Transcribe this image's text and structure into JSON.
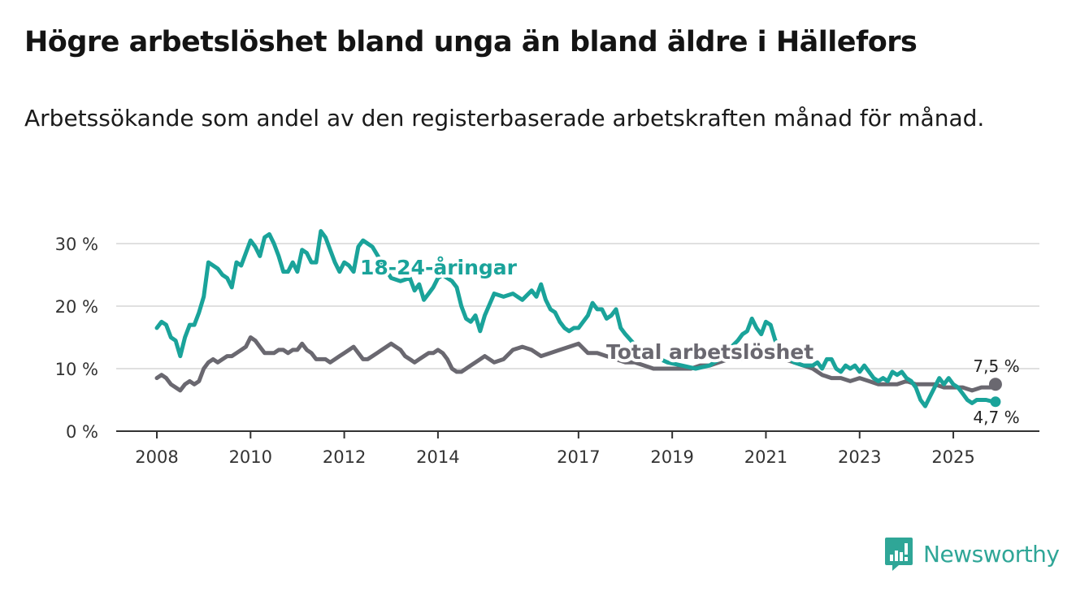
{
  "title": "Högre arbetslöshet bland unga än bland äldre i Hällefors",
  "subtitle": "Arbetssökande som andel av den registerbaserade arbetskraften månad för månad.",
  "brand": {
    "name": "Newsworthy",
    "color": "#2fa697"
  },
  "chart_data": {
    "type": "line",
    "title": "Högre arbetslöshet bland unga än bland äldre i Hällefors",
    "ylabel": "",
    "xlabel": "",
    "ylim": [
      0,
      30
    ],
    "xlim": [
      2007.6,
      2026.8
    ],
    "y_ticks": [
      {
        "value": 0,
        "label": "0 %"
      },
      {
        "value": 10,
        "label": "10 %"
      },
      {
        "value": 20,
        "label": "20 %"
      },
      {
        "value": 30,
        "label": "30 %"
      }
    ],
    "x_ticks": [
      {
        "value": 2008,
        "label": "2008"
      },
      {
        "value": 2010,
        "label": "2010"
      },
      {
        "value": 2012,
        "label": "2012"
      },
      {
        "value": 2014,
        "label": "2014"
      },
      {
        "value": 2017,
        "label": "2017"
      },
      {
        "value": 2019,
        "label": "2019"
      },
      {
        "value": 2021,
        "label": "2021"
      },
      {
        "value": 2023,
        "label": "2023"
      },
      {
        "value": 2025,
        "label": "2025"
      }
    ],
    "grid": true,
    "series": [
      {
        "name": "18-24-åringar",
        "color": "#1aa39a",
        "end_label": "4,7 %",
        "end_value": 4.7,
        "x": [
          2008.0,
          2008.1,
          2008.2,
          2008.3,
          2008.4,
          2008.5,
          2008.6,
          2008.7,
          2008.8,
          2008.9,
          2009.0,
          2009.1,
          2009.2,
          2009.3,
          2009.4,
          2009.5,
          2009.6,
          2009.7,
          2009.8,
          2009.9,
          2010.0,
          2010.1,
          2010.2,
          2010.3,
          2010.4,
          2010.5,
          2010.6,
          2010.7,
          2010.8,
          2010.9,
          2011.0,
          2011.1,
          2011.2,
          2011.3,
          2011.4,
          2011.5,
          2011.6,
          2011.7,
          2011.8,
          2011.9,
          2012.0,
          2012.1,
          2012.2,
          2012.3,
          2012.4,
          2012.5,
          2012.6,
          2012.8,
          2013.0,
          2013.2,
          2013.4,
          2013.5,
          2013.6,
          2013.7,
          2013.8,
          2013.9,
          2014.0,
          2014.1,
          2014.2,
          2014.3,
          2014.4,
          2014.5,
          2014.6,
          2014.7,
          2014.8,
          2014.9,
          2015.0,
          2015.2,
          2015.4,
          2015.6,
          2015.8,
          2016.0,
          2016.1,
          2016.2,
          2016.3,
          2016.4,
          2016.5,
          2016.6,
          2016.7,
          2016.8,
          2016.9,
          2017.0,
          2017.1,
          2017.2,
          2017.3,
          2017.4,
          2017.5,
          2017.6,
          2017.7,
          2017.8,
          2017.9,
          2018.0,
          2018.3,
          2018.6,
          2018.9,
          2019.2,
          2019.5,
          2019.8,
          2020.0,
          2020.2,
          2020.4,
          2020.5,
          2020.6,
          2020.7,
          2020.8,
          2020.9,
          2021.0,
          2021.1,
          2021.2,
          2021.4,
          2021.6,
          2021.8,
          2022.0,
          2022.1,
          2022.2,
          2022.3,
          2022.4,
          2022.5,
          2022.6,
          2022.7,
          2022.8,
          2022.9,
          2023.0,
          2023.1,
          2023.2,
          2023.3,
          2023.4,
          2023.5,
          2023.6,
          2023.7,
          2023.8,
          2023.9,
          2024.0,
          2024.1,
          2024.2,
          2024.3,
          2024.4,
          2024.5,
          2024.6,
          2024.7,
          2024.8,
          2024.9,
          2025.0,
          2025.1,
          2025.2,
          2025.3,
          2025.4,
          2025.5,
          2025.6,
          2025.7,
          2025.8,
          2025.9
        ],
        "values": [
          16.5,
          17.5,
          17.0,
          15.0,
          14.5,
          12.0,
          15.0,
          17.0,
          17.0,
          19.0,
          21.5,
          27.0,
          26.5,
          26.0,
          25.0,
          24.5,
          23.0,
          27.0,
          26.5,
          28.5,
          30.5,
          29.5,
          28.0,
          31.0,
          31.5,
          30.0,
          28.0,
          25.5,
          25.5,
          27.0,
          25.5,
          29.0,
          28.5,
          27.0,
          27.0,
          32.0,
          31.0,
          29.0,
          27.0,
          25.5,
          27.0,
          26.5,
          25.5,
          29.5,
          30.5,
          30.0,
          29.5,
          27.0,
          24.5,
          24.0,
          24.5,
          22.5,
          23.5,
          21.0,
          22.0,
          23.0,
          24.5,
          25.0,
          24.5,
          24.0,
          23.0,
          20.0,
          18.0,
          17.5,
          18.5,
          16.0,
          18.5,
          22.0,
          21.5,
          22.0,
          21.0,
          22.5,
          21.5,
          23.5,
          21.0,
          19.5,
          19.0,
          17.5,
          16.5,
          16.0,
          16.5,
          16.5,
          17.5,
          18.5,
          20.5,
          19.5,
          19.5,
          18.0,
          18.5,
          19.5,
          16.5,
          15.5,
          13.0,
          12.0,
          11.0,
          10.5,
          10.0,
          10.5,
          11.5,
          13.0,
          14.5,
          15.5,
          16.0,
          18.0,
          16.5,
          15.5,
          17.5,
          17.0,
          14.5,
          12.5,
          11.0,
          10.5,
          10.5,
          11.0,
          10.0,
          11.5,
          11.5,
          10.0,
          9.5,
          10.5,
          10.0,
          10.5,
          9.5,
          10.5,
          9.5,
          8.5,
          8.0,
          8.5,
          8.0,
          9.5,
          9.0,
          9.5,
          8.5,
          8.0,
          7.0,
          5.0,
          4.0,
          5.5,
          7.0,
          8.5,
          7.5,
          8.5,
          7.5,
          7.0,
          6.0,
          5.0,
          4.5,
          5.0,
          5.0,
          5.0,
          4.8,
          4.7
        ]
      },
      {
        "name": "Total arbetslöshet",
        "color": "#6a6870",
        "end_label": "7,5 %",
        "end_value": 7.5,
        "x": [
          2008.0,
          2008.1,
          2008.2,
          2008.3,
          2008.4,
          2008.5,
          2008.6,
          2008.7,
          2008.8,
          2008.9,
          2009.0,
          2009.1,
          2009.2,
          2009.3,
          2009.4,
          2009.5,
          2009.6,
          2009.7,
          2009.8,
          2009.9,
          2010.0,
          2010.1,
          2010.2,
          2010.3,
          2010.4,
          2010.5,
          2010.6,
          2010.7,
          2010.8,
          2010.9,
          2011.0,
          2011.1,
          2011.2,
          2011.3,
          2011.4,
          2011.5,
          2011.6,
          2011.7,
          2011.8,
          2011.9,
          2012.0,
          2012.1,
          2012.2,
          2012.3,
          2012.4,
          2012.5,
          2012.6,
          2012.7,
          2012.8,
          2012.9,
          2013.0,
          2013.1,
          2013.2,
          2013.3,
          2013.4,
          2013.5,
          2013.6,
          2013.7,
          2013.8,
          2013.9,
          2014.0,
          2014.1,
          2014.2,
          2014.3,
          2014.4,
          2014.5,
          2014.6,
          2014.7,
          2014.8,
          2014.9,
          2015.0,
          2015.2,
          2015.4,
          2015.6,
          2015.8,
          2016.0,
          2016.2,
          2016.4,
          2016.6,
          2016.8,
          2017.0,
          2017.2,
          2017.4,
          2017.6,
          2017.8,
          2018.0,
          2018.2,
          2018.4,
          2018.6,
          2018.8,
          2019.0,
          2019.2,
          2019.4,
          2019.6,
          2019.8,
          2020.0,
          2020.2,
          2020.4,
          2020.6,
          2020.8,
          2021.0,
          2021.2,
          2021.4,
          2021.6,
          2021.8,
          2022.0,
          2022.2,
          2022.4,
          2022.6,
          2022.8,
          2023.0,
          2023.2,
          2023.4,
          2023.6,
          2023.8,
          2024.0,
          2024.2,
          2024.4,
          2024.6,
          2024.8,
          2025.0,
          2025.2,
          2025.4,
          2025.6,
          2025.8,
          2025.9
        ],
        "values": [
          8.5,
          9.0,
          8.5,
          7.5,
          7.0,
          6.5,
          7.5,
          8.0,
          7.5,
          8.0,
          10.0,
          11.0,
          11.5,
          11.0,
          11.5,
          12.0,
          12.0,
          12.5,
          13.0,
          13.5,
          15.0,
          14.5,
          13.5,
          12.5,
          12.5,
          12.5,
          13.0,
          13.0,
          12.5,
          13.0,
          13.0,
          14.0,
          13.0,
          12.5,
          11.5,
          11.5,
          11.5,
          11.0,
          11.5,
          12.0,
          12.5,
          13.0,
          13.5,
          12.5,
          11.5,
          11.5,
          12.0,
          12.5,
          13.0,
          13.5,
          14.0,
          13.5,
          13.0,
          12.0,
          11.5,
          11.0,
          11.5,
          12.0,
          12.5,
          12.5,
          13.0,
          12.5,
          11.5,
          10.0,
          9.5,
          9.5,
          10.0,
          10.5,
          11.0,
          11.5,
          12.0,
          11.0,
          11.5,
          13.0,
          13.5,
          13.0,
          12.0,
          12.5,
          13.0,
          13.5,
          14.0,
          12.5,
          12.5,
          12.0,
          11.5,
          11.0,
          11.0,
          10.5,
          10.0,
          10.0,
          10.0,
          10.0,
          10.0,
          10.5,
          10.5,
          11.0,
          11.5,
          11.5,
          11.5,
          12.0,
          12.5,
          12.0,
          11.5,
          11.0,
          10.5,
          10.0,
          9.0,
          8.5,
          8.5,
          8.0,
          8.5,
          8.0,
          7.5,
          7.5,
          7.5,
          8.0,
          7.5,
          7.5,
          7.5,
          7.0,
          7.0,
          7.0,
          6.5,
          7.0,
          7.0,
          7.5
        ]
      }
    ]
  }
}
